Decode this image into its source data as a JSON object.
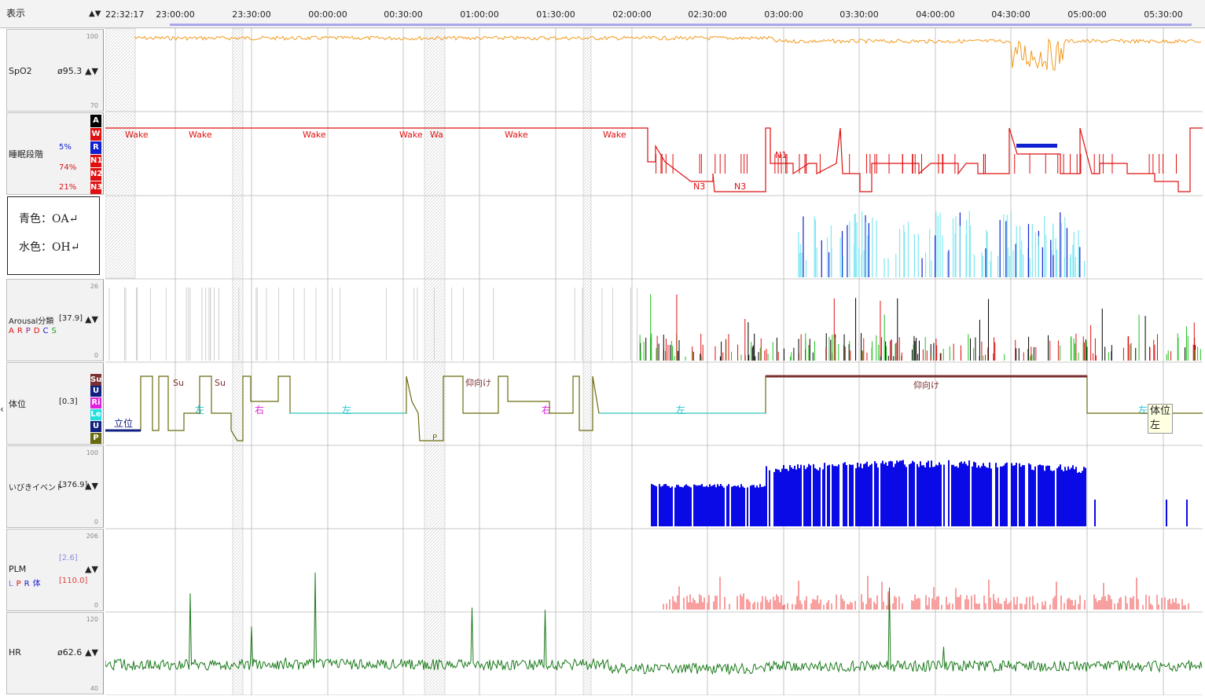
{
  "header": {
    "display_label": "表示",
    "nav_arrows": "▲▼",
    "start_time": "22:32:17",
    "hour_ticks": [
      "23:00:00",
      "23:30:00",
      "00:00:00",
      "00:30:00",
      "01:00:00",
      "01:30:00",
      "02:00:00",
      "02:30:00",
      "03:00:00",
      "03:30:00",
      "04:00:00",
      "04:30:00",
      "05:00:00",
      "05:30:00"
    ]
  },
  "tracks": {
    "spo2": {
      "name": "SpO2",
      "value": "ø95.3",
      "arrows": "▲▼",
      "axis_max": "100",
      "axis_min": "70",
      "color": "#f39a1e"
    },
    "sleep": {
      "name": "睡眠段階",
      "pct_r": "5%",
      "pct_n": "74%",
      "pct_n3": "21%",
      "stages": [
        "A",
        "W",
        "R",
        "N1",
        "N2",
        "N3"
      ],
      "stage_colors": [
        "#000000",
        "#e01010",
        "#1020d0",
        "#e01010",
        "#e01010",
        "#e01010"
      ],
      "labels": [
        "Wake",
        "Wake",
        "Wake",
        "Wake",
        "Wa",
        "Wake",
        "Wake",
        "N1",
        "N3",
        "N3"
      ],
      "color": "#e01010"
    },
    "legend": {
      "line1": "青色：OA↵",
      "line2": "水色：OH↵",
      "oa_color": "#1020d0",
      "oh_color": "#7de8f2"
    },
    "arousal": {
      "name": "Arousal分類",
      "value": "[37.9]",
      "arrows": "▲▼",
      "axis_max": "26",
      "axis_min": "0",
      "letters": [
        "A",
        "R",
        "P",
        "D",
        "C",
        "S"
      ],
      "letter_colors": [
        "#e01010",
        "#e01010",
        "#8a1a8a",
        "#e01010",
        "#1a1ad0",
        "#20a020"
      ]
    },
    "position": {
      "name": "体位",
      "value": "[0.3]",
      "boxes": [
        "Su",
        "U",
        "Ri",
        "Le",
        "U",
        "P"
      ],
      "box_colors": [
        "#7a3030",
        "#102080",
        "#e020e0",
        "#20e0e0",
        "#102080",
        "#6a6a10"
      ],
      "labels": {
        "standing": "立位",
        "su": "Su",
        "left": "左",
        "right": "右",
        "supine": "仰向け",
        "p": "P"
      }
    },
    "snore": {
      "name": "いびきイベント",
      "value": "[376.9]",
      "arrows": "▲▼",
      "axis_max": "100",
      "axis_min": "0",
      "color": "#0a0ae6"
    },
    "plm": {
      "name": "PLM",
      "value1": "[2.6]",
      "value2": "[110.0]",
      "arrows": "▲▼",
      "axis_max": "206",
      "axis_min": "0",
      "letters": [
        "L",
        "P",
        "R",
        "体"
      ],
      "letter_colors": [
        "#6a6af0",
        "#e01010",
        "#1a1ad0",
        "#1a1ad0"
      ],
      "color": "#f04040"
    },
    "hr": {
      "name": "HR",
      "value": "ø62.6",
      "arrows": "▲▼",
      "axis_max": "120",
      "axis_min": "40",
      "color": "#1a7a1a"
    }
  },
  "tooltip": {
    "line1": "体位",
    "line2": "左"
  },
  "left_caret": "‹"
}
